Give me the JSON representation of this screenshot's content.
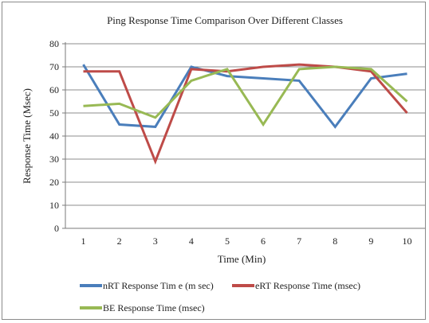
{
  "chart_data": {
    "type": "line",
    "title": "Ping Response Time Comparison Over Different  Classes",
    "xlabel": "Time (Min)",
    "ylabel": "Response Time (Msec)",
    "x": [
      1,
      2,
      3,
      4,
      5,
      6,
      7,
      8,
      9,
      10
    ],
    "x_tick_labels": [
      "1",
      "2",
      "3",
      "4",
      "5",
      "6",
      "7",
      "8",
      "9",
      "10"
    ],
    "ylim": [
      0,
      80
    ],
    "y_ticks": [
      0,
      10,
      20,
      30,
      40,
      50,
      60,
      70,
      80
    ],
    "y_tick_labels": [
      "0",
      "10",
      "20",
      "30",
      "40",
      "50",
      "60",
      "70",
      "80"
    ],
    "grid": "horizontal",
    "legend_position": "bottom",
    "series": [
      {
        "name": "nRT Response Tim e (m sec)",
        "color": "#4a7ebb",
        "values": [
          71,
          45,
          44,
          70,
          66,
          65,
          64,
          44,
          65,
          67
        ]
      },
      {
        "name": "eRT Response Time (msec)",
        "color": "#be4b48",
        "values": [
          68,
          68,
          29,
          69,
          68,
          70,
          71,
          70,
          68,
          50
        ]
      },
      {
        "name": "BE Response Time (msec)",
        "color": "#98b954",
        "values": [
          53,
          54,
          48,
          64,
          69,
          45,
          69,
          70,
          69,
          55
        ]
      }
    ]
  }
}
